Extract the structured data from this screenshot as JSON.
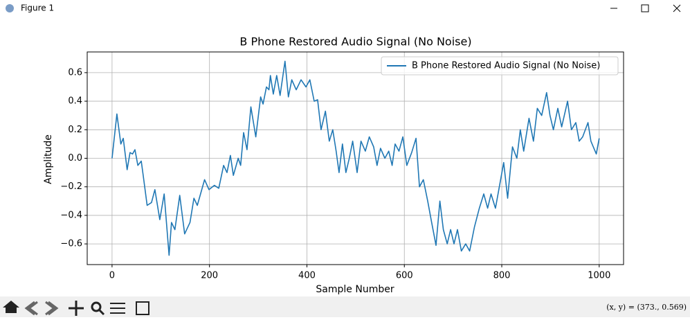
{
  "window": {
    "title": "Figure 1",
    "status": "(x, y) = (373., 0.569)"
  },
  "chart_data": {
    "type": "line",
    "title": "B Phone Restored Audio Signal (No Noise)",
    "x_label": "Sample Number",
    "y_label": "Amplitude",
    "xlim": [
      -51,
      1050
    ],
    "ylim": [
      -0.745,
      0.745
    ],
    "xticks": [
      0,
      200,
      400,
      600,
      800,
      1000
    ],
    "yticks": [
      {
        "value": -0.6,
        "label": "−0.6"
      },
      {
        "value": -0.4,
        "label": "−0.4"
      },
      {
        "value": -0.2,
        "label": "−0.2"
      },
      {
        "value": 0,
        "label": "0.0"
      },
      0.2,
      0.4,
      0.6
    ],
    "grid": true,
    "legend": "upper right",
    "series": [
      {
        "name": "B Phone Restored Audio Signal (No Noise)",
        "color": "#1f77b4",
        "x": [
          0,
          10,
          18,
          23,
          31,
          37,
          42,
          47,
          53,
          60,
          64,
          72,
          81,
          88,
          98,
          107,
          117,
          122,
          129,
          139,
          149,
          160,
          168,
          175,
          190,
          199,
          210,
          219,
          229,
          236,
          243,
          249,
          259,
          264,
          270,
          277,
          285,
          295,
          305,
          310,
          317,
          322,
          325,
          331,
          338,
          345,
          355,
          362,
          369,
          378,
          388,
          398,
          406,
          415,
          422,
          429,
          438,
          446,
          453,
          460,
          466,
          473,
          480,
          487,
          494,
          503,
          511,
          520,
          528,
          537,
          544,
          551,
          560,
          568,
          575,
          581,
          589,
          597,
          605,
          615,
          624,
          631,
          639,
          648,
          656,
          665,
          673,
          680,
          688,
          695,
          702,
          709,
          717,
          726,
          734,
          744,
          754,
          763,
          771,
          778,
          787,
          795,
          804,
          812,
          822,
          831,
          838,
          845,
          856,
          865,
          873,
          882,
          892,
          899,
          906,
          915,
          923,
          935,
          943,
          952,
          959,
          966,
          977,
          983,
          994,
          1000
        ],
        "values": [
          0,
          0.31,
          0.1,
          0.14,
          -0.08,
          0.04,
          0.03,
          0.06,
          -0.05,
          -0.02,
          -0.12,
          -0.33,
          -0.31,
          -0.22,
          -0.43,
          -0.25,
          -0.68,
          -0.45,
          -0.5,
          -0.26,
          -0.53,
          -0.45,
          -0.28,
          -0.33,
          -0.15,
          -0.22,
          -0.19,
          -0.21,
          -0.05,
          -0.1,
          0.02,
          -0.12,
          0,
          -0.05,
          0.18,
          0.06,
          0.36,
          0.15,
          0.43,
          0.38,
          0.5,
          0.48,
          0.58,
          0.45,
          0.58,
          0.44,
          0.68,
          0.43,
          0.55,
          0.48,
          0.55,
          0.5,
          0.55,
          0.4,
          0.41,
          0.2,
          0.33,
          0.12,
          0.2,
          0.05,
          -0.1,
          0.1,
          -0.1,
          0,
          0.12,
          -0.1,
          0.12,
          0.05,
          0.15,
          0.08,
          -0.05,
          0.07,
          0,
          0.05,
          -0.05,
          0.1,
          0.05,
          0.15,
          -0.05,
          0.04,
          0.14,
          -0.2,
          -0.15,
          -0.3,
          -0.45,
          -0.61,
          -0.3,
          -0.5,
          -0.6,
          -0.5,
          -0.6,
          -0.5,
          -0.65,
          -0.6,
          -0.65,
          -0.48,
          -0.35,
          -0.25,
          -0.35,
          -0.25,
          -0.35,
          -0.2,
          -0.03,
          -0.28,
          0.08,
          0,
          0.2,
          0.05,
          0.28,
          0.12,
          0.35,
          0.3,
          0.46,
          0.3,
          0.2,
          0.35,
          0.22,
          0.4,
          0.2,
          0.25,
          0.12,
          0.15,
          0.25,
          0.12,
          0.03,
          0.14
        ]
      }
    ]
  }
}
